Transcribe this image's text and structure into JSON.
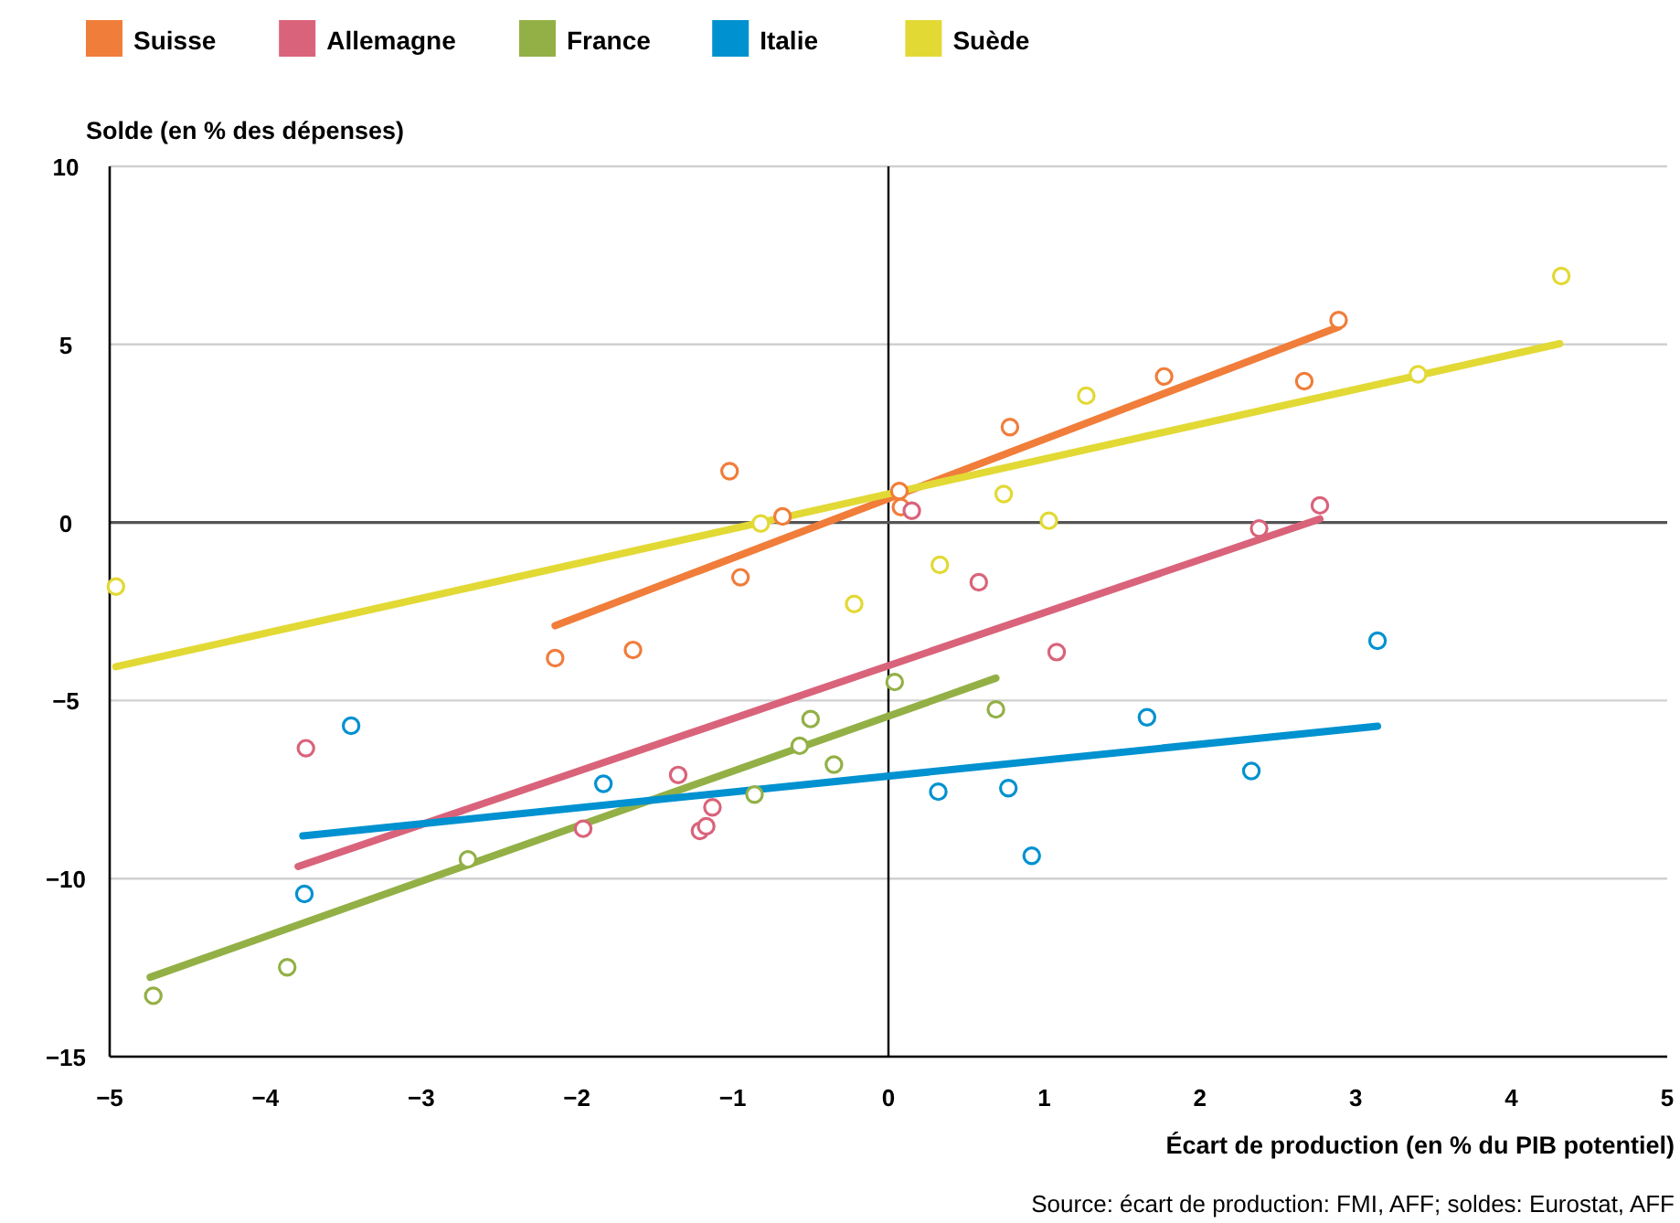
{
  "chart_data": {
    "type": "scatter",
    "xlabel": "Écart de production (en % du PIB potentiel)",
    "ylabel": "Solde (en % des dépenses)",
    "annotations": [
      "Source: écart de production: FMI, AFF; soldes: Eurostat, AFF"
    ],
    "xlim": [
      -5,
      5
    ],
    "xticks": [
      -5,
      -4,
      -3,
      -2,
      -1,
      0,
      1,
      2,
      3,
      4,
      5
    ],
    "ylim": [
      -15,
      10
    ],
    "yticks": [
      -15,
      -10,
      -5,
      0,
      5,
      10
    ],
    "grid": "y",
    "legend": "top left",
    "marker": "circle",
    "ref_lines": [
      {
        "axis": "x",
        "value": 0,
        "color": "#000000"
      },
      {
        "axis": "y",
        "value": 0,
        "color": "#555555"
      }
    ],
    "series": [
      {
        "name": "Suisse",
        "color": "#f07d3a",
        "x": [
          -1.02,
          -0.68,
          -0.95,
          0.07,
          0.08,
          0.78,
          1.77,
          2.67,
          2.89,
          -2.14,
          -1.64
        ],
        "values": [
          1.44,
          0.17,
          -1.54,
          0.88,
          0.43,
          2.68,
          4.1,
          3.97,
          5.68,
          -3.81,
          -3.58
        ]
      },
      {
        "name": "Allemagne",
        "color": "#d9637a",
        "x": [
          0.15,
          0.58,
          2.38,
          2.77,
          1.08,
          -3.74,
          -1.35,
          -1.96,
          -1.21,
          -1.17,
          -1.13
        ],
        "values": [
          0.33,
          -1.68,
          -0.17,
          0.48,
          -3.64,
          -6.34,
          -7.09,
          -8.6,
          -8.66,
          -8.53,
          -8.0
        ]
      },
      {
        "name": "France",
        "color": "#93b046",
        "x": [
          -4.72,
          -3.86,
          -2.7,
          -0.86,
          -0.57,
          -0.5,
          -0.35,
          0.04,
          0.69
        ],
        "values": [
          -13.29,
          -12.49,
          -9.46,
          -7.64,
          -6.27,
          -5.52,
          -6.8,
          -4.48,
          -5.25
        ]
      },
      {
        "name": "Italie",
        "color": "#0091d0",
        "x": [
          -3.45,
          -3.75,
          -1.83,
          0.32,
          0.77,
          0.92,
          1.66,
          2.33,
          3.14
        ],
        "values": [
          -5.71,
          -10.43,
          -7.34,
          -7.56,
          -7.46,
          -9.36,
          -5.47,
          -6.98,
          -3.32
        ]
      },
      {
        "name": "Suède",
        "color": "#e2d935",
        "x": [
          -4.96,
          -0.82,
          -0.22,
          0.33,
          0.74,
          1.03,
          1.27,
          3.4,
          4.32
        ],
        "values": [
          -1.8,
          -0.03,
          -2.29,
          -1.19,
          0.8,
          0.05,
          3.56,
          4.16,
          6.92
        ]
      },
      {
        "type": "line",
        "marker": "none",
        "color": "#f07d3a",
        "x": [
          -2.14,
          2.89
        ],
        "values": [
          -2.9,
          5.49
        ]
      },
      {
        "type": "line",
        "marker": "none",
        "color": "#d9637a",
        "x": [
          -3.79,
          2.77
        ],
        "values": [
          -9.66,
          0.1
        ]
      },
      {
        "type": "line",
        "marker": "none",
        "color": "#93b046",
        "x": [
          -4.74,
          0.69
        ],
        "values": [
          -12.77,
          -4.37
        ]
      },
      {
        "type": "line",
        "marker": "none",
        "color": "#0091d0",
        "x": [
          -3.76,
          3.14
        ],
        "values": [
          -8.8,
          -5.72
        ]
      },
      {
        "type": "line",
        "marker": "none",
        "color": "#e2d935",
        "x": [
          -4.96,
          4.31
        ],
        "values": [
          -4.05,
          5.02
        ]
      }
    ]
  }
}
